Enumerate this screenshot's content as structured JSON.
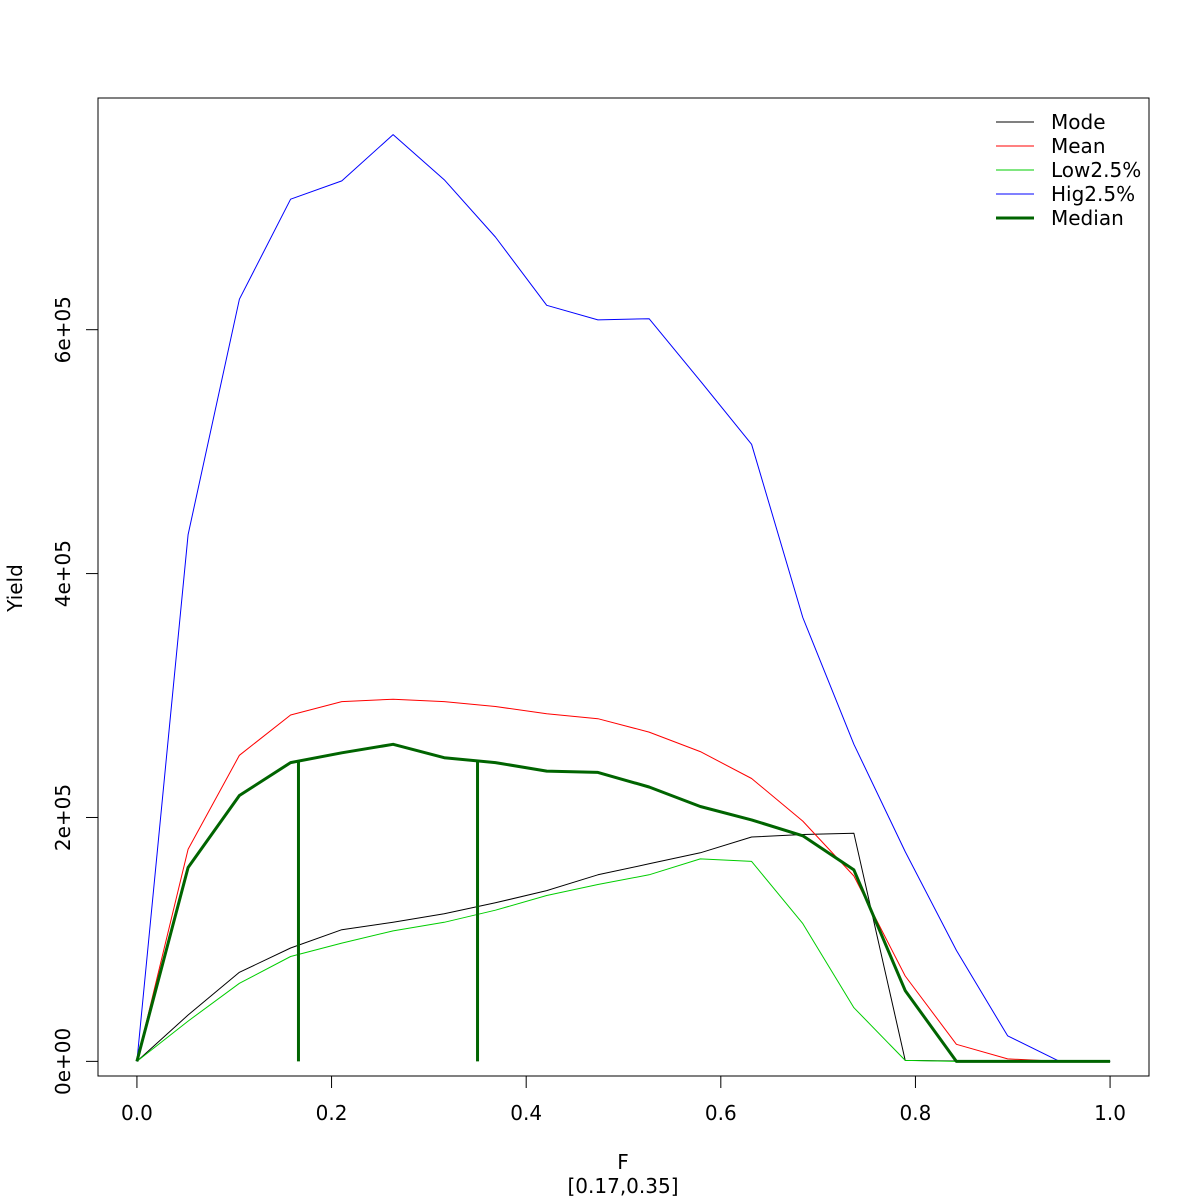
{
  "chart_data": {
    "type": "line",
    "xlabel": "F",
    "xsublabel": "[0.17,0.35]",
    "ylabel": "Yield",
    "xlim": [
      -0.04,
      1.04
    ],
    "ylim": [
      -12000,
      790000
    ],
    "x_ticks": [
      0.0,
      0.2,
      0.4,
      0.6,
      0.8,
      1.0
    ],
    "x_tick_labels": [
      "0.0",
      "0.2",
      "0.4",
      "0.6",
      "0.8",
      "1.0"
    ],
    "y_ticks": [
      0,
      200000,
      400000,
      600000
    ],
    "y_tick_labels": [
      "0e+00",
      "2e+05",
      "4e+05",
      "6e+05"
    ],
    "grid": false,
    "legend_position": "top-right",
    "x": [
      0.0,
      0.0526,
      0.1053,
      0.1579,
      0.2105,
      0.2632,
      0.3158,
      0.3684,
      0.4211,
      0.4737,
      0.5263,
      0.5789,
      0.6316,
      0.6842,
      0.7368,
      0.7895,
      0.8421,
      0.8947,
      0.9474,
      1.0
    ],
    "series": [
      {
        "name": "Mode",
        "color": "#000000",
        "width": 1,
        "values": [
          0,
          38000,
          73000,
          93000,
          108000,
          114000,
          121000,
          130000,
          140000,
          153000,
          162000,
          171000,
          184000,
          186000,
          187000,
          800,
          300,
          0,
          0,
          0
        ]
      },
      {
        "name": "Mean",
        "color": "#ff0000",
        "width": 1,
        "values": [
          0,
          174000,
          251000,
          284000,
          295000,
          297000,
          295000,
          291000,
          285000,
          281000,
          270000,
          254000,
          232000,
          197000,
          152000,
          70000,
          14000,
          2000,
          0,
          0
        ]
      },
      {
        "name": "Low2.5%",
        "color": "#00cd00",
        "width": 1,
        "values": [
          0,
          33000,
          64000,
          86000,
          97000,
          107000,
          114000,
          124000,
          136000,
          145000,
          153000,
          166000,
          164000,
          113000,
          44000,
          800,
          0,
          0,
          0,
          0
        ]
      },
      {
        "name": "Hig2.5%",
        "color": "#0000ff",
        "width": 1,
        "values": [
          0,
          432000,
          625000,
          707000,
          722000,
          760000,
          723000,
          676000,
          620000,
          608000,
          609000,
          558000,
          506000,
          364000,
          260000,
          172000,
          91000,
          21000,
          200,
          0
        ]
      },
      {
        "name": "Median",
        "color": "#006400",
        "width": 3,
        "values": [
          0,
          159000,
          218000,
          245000,
          253000,
          260000,
          249000,
          245000,
          238000,
          237000,
          225000,
          209000,
          198000,
          185000,
          157000,
          58000,
          0,
          0,
          0,
          0
        ]
      }
    ],
    "reference_segments": [
      {
        "x": 0.166,
        "y0": 0,
        "y1": 246000,
        "color": "#006400"
      },
      {
        "x": 0.35,
        "y0": 0,
        "y1": 246000,
        "color": "#006400"
      }
    ]
  }
}
